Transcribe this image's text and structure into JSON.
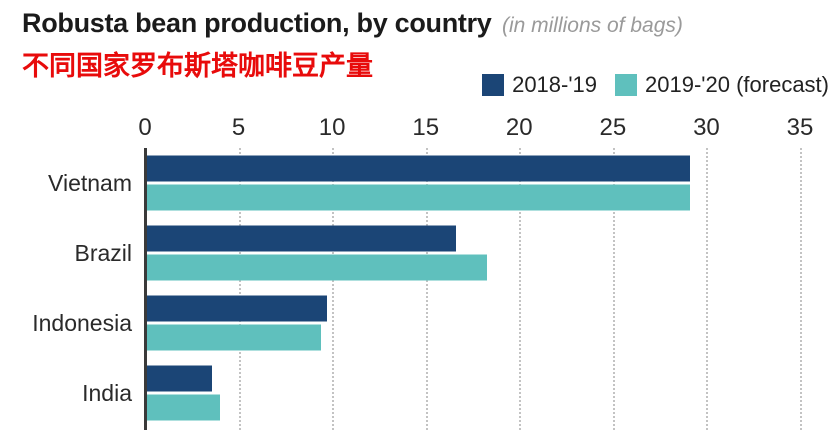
{
  "header": {
    "title": "Robusta bean production, by country",
    "subtitle": "(in millions of bags)",
    "subtitle_cn": "不同国家罗布斯塔咖啡豆产量"
  },
  "legend": {
    "items": [
      {
        "label": "2018-'19",
        "color": "#1b4576"
      },
      {
        "label": "2019-'20 (forecast)",
        "color": "#5fc0bd"
      }
    ]
  },
  "chart_data": {
    "type": "bar",
    "orientation": "horizontal",
    "title": "Robusta bean production, by country",
    "units": "millions of bags",
    "categories": [
      "Vietnam",
      "Brazil",
      "Indonesia",
      "India"
    ],
    "series": [
      {
        "name": "2018-'19",
        "color": "#1b4576",
        "values": [
          29.1,
          16.6,
          9.7,
          3.6
        ]
      },
      {
        "name": "2019-'20 (forecast)",
        "color": "#5fc0bd",
        "values": [
          29.1,
          18.3,
          9.4,
          4.0
        ]
      }
    ],
    "xlim": [
      0,
      35
    ],
    "xticks": [
      0,
      5,
      10,
      15,
      20,
      25,
      30,
      35
    ],
    "grid": "dotted-vertical",
    "legend_position": "top-right"
  }
}
